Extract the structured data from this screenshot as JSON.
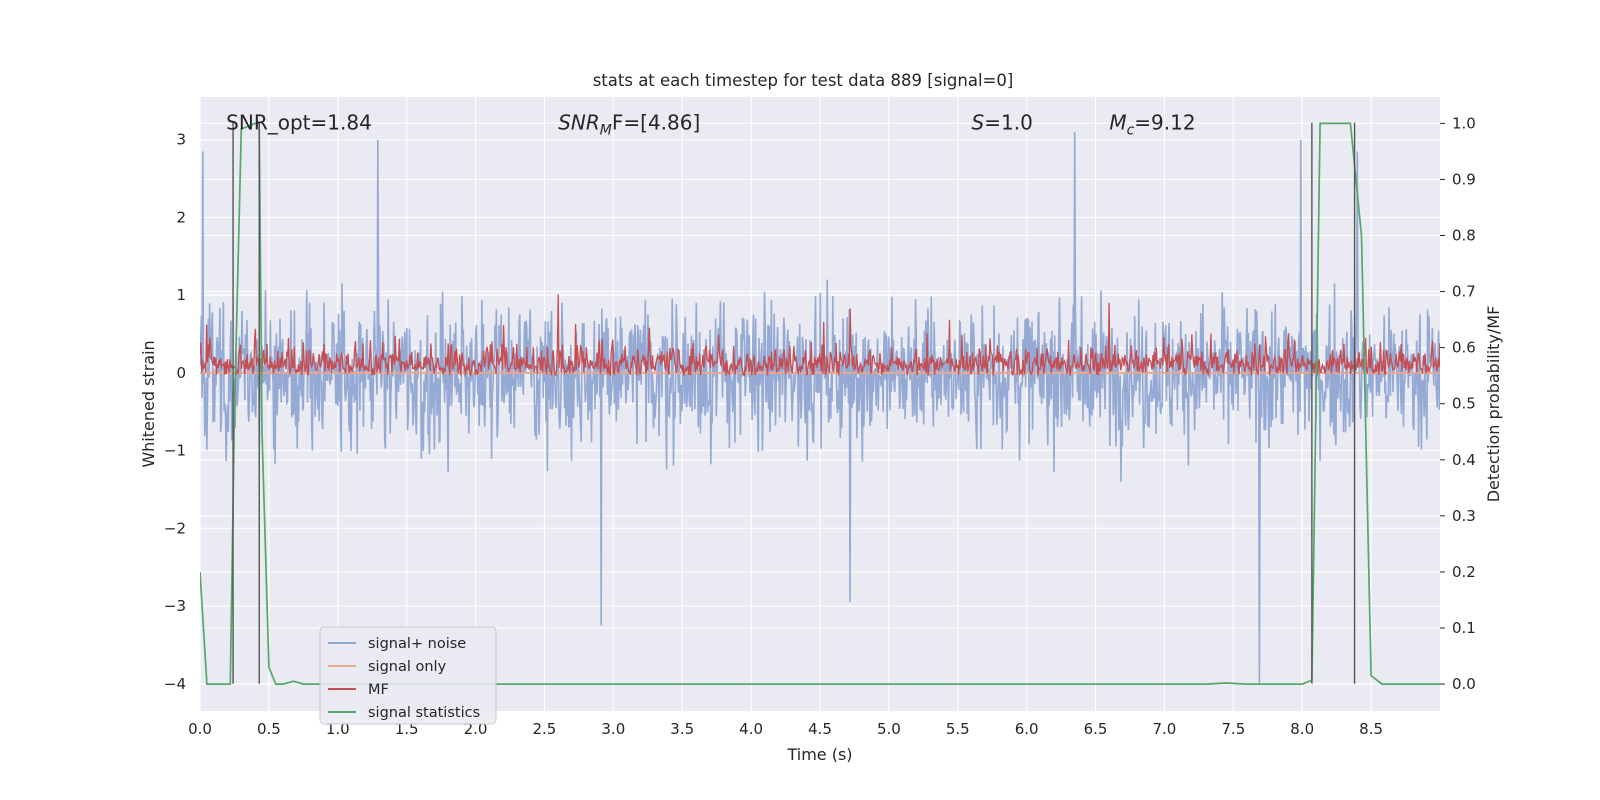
{
  "chart_data": {
    "type": "line",
    "title": "stats at each timestep for test data 889 [signal=0]",
    "xlabel": "Time (s)",
    "ylabel": "Whitened strain",
    "ylabel_right": "Detection probability/MF",
    "xlim": [
      0.0,
      9.0
    ],
    "ylim": [
      -4.35,
      3.55
    ],
    "ylim_right": [
      -0.048,
      1.047
    ],
    "x_ticks": [
      0.0,
      0.5,
      1.0,
      1.5,
      2.0,
      2.5,
      3.0,
      3.5,
      4.0,
      4.5,
      5.0,
      5.5,
      6.0,
      6.5,
      7.0,
      7.5,
      8.0,
      8.5
    ],
    "x_tick_labels": [
      "0.0",
      "0.5",
      "1.0",
      "1.5",
      "2.0",
      "2.5",
      "3.0",
      "3.5",
      "4.0",
      "4.5",
      "5.0",
      "5.5",
      "6.0",
      "6.5",
      "7.0",
      "7.5",
      "8.0",
      "8.5"
    ],
    "y_ticks": [
      -4,
      -3,
      -2,
      -1,
      0,
      1,
      2,
      3
    ],
    "y_tick_labels": [
      "−4",
      "−3",
      "−2",
      "−1",
      "0",
      "1",
      "2",
      "3"
    ],
    "y_right_ticks": [
      0.0,
      0.1,
      0.2,
      0.3,
      0.4,
      0.5,
      0.6,
      0.7,
      0.8,
      0.9,
      1.0
    ],
    "y_right_tick_labels": [
      "0.0",
      "0.1",
      "0.2",
      "0.3",
      "0.4",
      "0.5",
      "0.6",
      "0.7",
      "0.8",
      "0.9",
      "1.0"
    ],
    "grid": true,
    "legend_position": "lower-left",
    "annotations": [
      {
        "text": "SNR_opt=1.84",
        "x": 0.19,
        "y": 3.22
      },
      {
        "text": "SNR",
        "sub": "M",
        "rest": "F=[4.86]",
        "italic": true,
        "x": 2.6,
        "y": 3.22
      },
      {
        "text": "S",
        "rest": "=1.0",
        "italic": true,
        "x": 5.6,
        "y": 3.22
      },
      {
        "text": "M",
        "sub": "c",
        "rest": "=9.12",
        "italic": true,
        "x": 6.6,
        "y": 3.22
      }
    ],
    "vertical_lines": [
      {
        "x": 0.24,
        "y_from": -4.0,
        "y_to": 3.22
      },
      {
        "x": 0.43,
        "y_from": -4.0,
        "y_to": 3.22
      },
      {
        "x": 8.07,
        "y_from": -4.0,
        "y_to": 3.22
      },
      {
        "x": 8.38,
        "y_from": -4.0,
        "y_to": 3.22
      }
    ],
    "series": [
      {
        "name": "signal+ noise",
        "color": "#8fa5d2",
        "axis": "left",
        "envelope": {
          "x": [
            0.0,
            9.0
          ],
          "typical_min": -1.6,
          "typical_max": 1.6,
          "peak_max": 3.0,
          "peak_min": -4.0
        },
        "notable_peaks": [
          [
            0.02,
            2.85
          ],
          [
            1.29,
            3.0
          ],
          [
            2.91,
            -3.25
          ],
          [
            4.72,
            -2.95
          ],
          [
            6.35,
            3.1
          ],
          [
            7.69,
            -4.0
          ],
          [
            7.99,
            3.0
          ],
          [
            8.4,
            2.85
          ]
        ]
      },
      {
        "name": "signal only",
        "color": "#e8a98e",
        "axis": "left",
        "x": [
          0.0,
          9.0
        ],
        "y": [
          0.0,
          0.0
        ]
      },
      {
        "name": "MF",
        "color": "#c44e52",
        "axis": "right",
        "envelope": {
          "x": [
            0.0,
            9.0
          ],
          "baseline": 0.56,
          "typical_max": 0.63,
          "peak_max": 0.69
        },
        "notable_peaks": [
          [
            2.6,
            0.695
          ],
          [
            4.72,
            0.67
          ],
          [
            6.6,
            0.68
          ]
        ]
      },
      {
        "name": "signal statistics",
        "color": "#55a868",
        "axis": "right",
        "x": [
          0.0,
          0.05,
          0.22,
          0.25,
          0.3,
          0.4,
          0.43,
          0.45,
          0.5,
          0.55,
          0.6,
          0.68,
          0.75,
          3.2,
          7.3,
          7.45,
          7.6,
          8.0,
          8.07,
          8.13,
          8.27,
          8.35,
          8.43,
          8.5,
          8.58,
          8.65,
          9.0
        ],
        "y": [
          0.2,
          0.0,
          0.0,
          0.48,
          0.99,
          1.0,
          1.0,
          0.45,
          0.03,
          0.0,
          0.0,
          0.005,
          0.0,
          0.0,
          0.0,
          0.002,
          0.0,
          0.0,
          0.007,
          1.0,
          1.0,
          1.0,
          0.8,
          0.015,
          0.0,
          0.0,
          0.0
        ]
      }
    ]
  }
}
